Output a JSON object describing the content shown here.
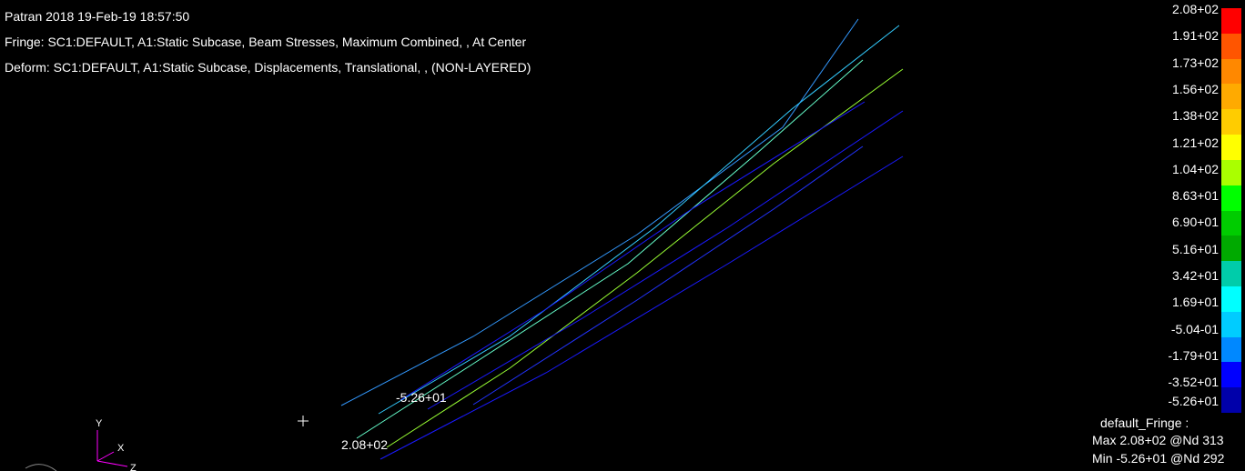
{
  "header": {
    "title": "Patran 2018 19-Feb-19 18:57:50",
    "fringe": "Fringe: SC1:DEFAULT, A1:Static Subcase, Beam Stresses, Maximum Combined, , At Center",
    "deform": "Deform: SC1:DEFAULT, A1:Static Subcase, Displacements, Translational, , (NON-LAYERED)"
  },
  "annotations": {
    "min_label": "-5.26+01",
    "max_label": "2.08+02"
  },
  "axes": {
    "y_label": "Y",
    "x_label": "X",
    "z_label": "Z",
    "y_color": "#ff00ff",
    "x_color": "#ff00ff",
    "z_color": "#ff00ff"
  },
  "legend": {
    "entries": [
      {
        "label": "2.08+02",
        "color": "#ff0000"
      },
      {
        "label": "1.91+02",
        "color": "#ff5500"
      },
      {
        "label": "1.73+02",
        "color": "#ff8800"
      },
      {
        "label": "1.56+02",
        "color": "#ffaa00"
      },
      {
        "label": "1.38+02",
        "color": "#ffcc00"
      },
      {
        "label": "1.21+02",
        "color": "#ffff00"
      },
      {
        "label": "1.04+02",
        "color": "#aaff00"
      },
      {
        "label": "8.63+01",
        "color": "#00ff00"
      },
      {
        "label": "6.90+01",
        "color": "#00cc00"
      },
      {
        "label": "5.16+01",
        "color": "#00aa00"
      },
      {
        "label": "3.42+01",
        "color": "#00ccaa"
      },
      {
        "label": "1.69+01",
        "color": "#00ffff"
      },
      {
        "label": "-5.04-01",
        "color": "#00ccff"
      },
      {
        "label": "-1.79+01",
        "color": "#0088ff"
      },
      {
        "label": "-3.52+01",
        "color": "#0000ff"
      },
      {
        "label": "-5.26+01",
        "color": "#0000aa"
      }
    ]
  },
  "summary": {
    "title": "default_Fringe :",
    "max": "Max 2.08+02 @Nd 313",
    "min": "Min -5.26+01 @Nd 292"
  },
  "colors": {
    "background": "#000000",
    "text": "#ffffff",
    "beam_blue": "#1a1aff",
    "beam_light_blue": "#3399ff",
    "beam_cyan": "#33ccff",
    "beam_green": "#99ff33"
  }
}
